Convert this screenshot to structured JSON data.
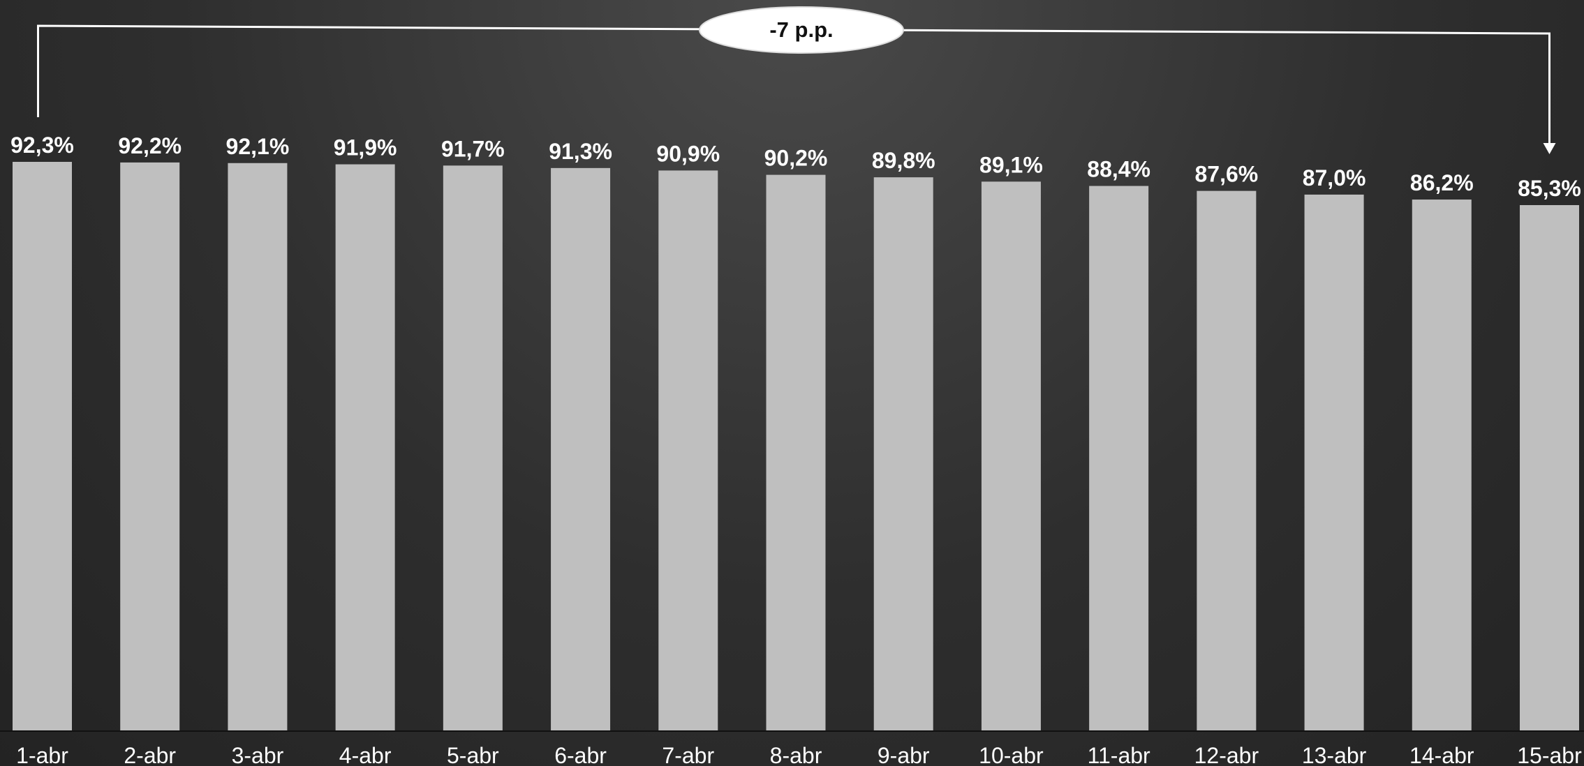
{
  "chart_data": {
    "type": "bar",
    "categories": [
      "1-abr",
      "2-abr",
      "3-abr",
      "4-abr",
      "5-abr",
      "6-abr",
      "7-abr",
      "8-abr",
      "9-abr",
      "10-abr",
      "11-abr",
      "12-abr",
      "13-abr",
      "14-abr",
      "15-abr"
    ],
    "values": [
      92.3,
      92.2,
      92.1,
      91.9,
      91.7,
      91.3,
      90.9,
      90.2,
      89.8,
      89.1,
      88.4,
      87.6,
      87.0,
      86.2,
      85.3
    ],
    "value_labels": [
      "92,3%",
      "92,2%",
      "92,1%",
      "91,9%",
      "91,7%",
      "91,3%",
      "90,9%",
      "90,2%",
      "89,8%",
      "89,1%",
      "88,4%",
      "87,6%",
      "87,0%",
      "86,2%",
      "85,3%"
    ],
    "bar_color": "#bfbfbf",
    "annotation": {
      "text": "-7 p.p.",
      "from": "1-abr",
      "to": "15-abr"
    },
    "ylim": [
      0,
      100
    ],
    "grid": false,
    "legend": "none"
  }
}
